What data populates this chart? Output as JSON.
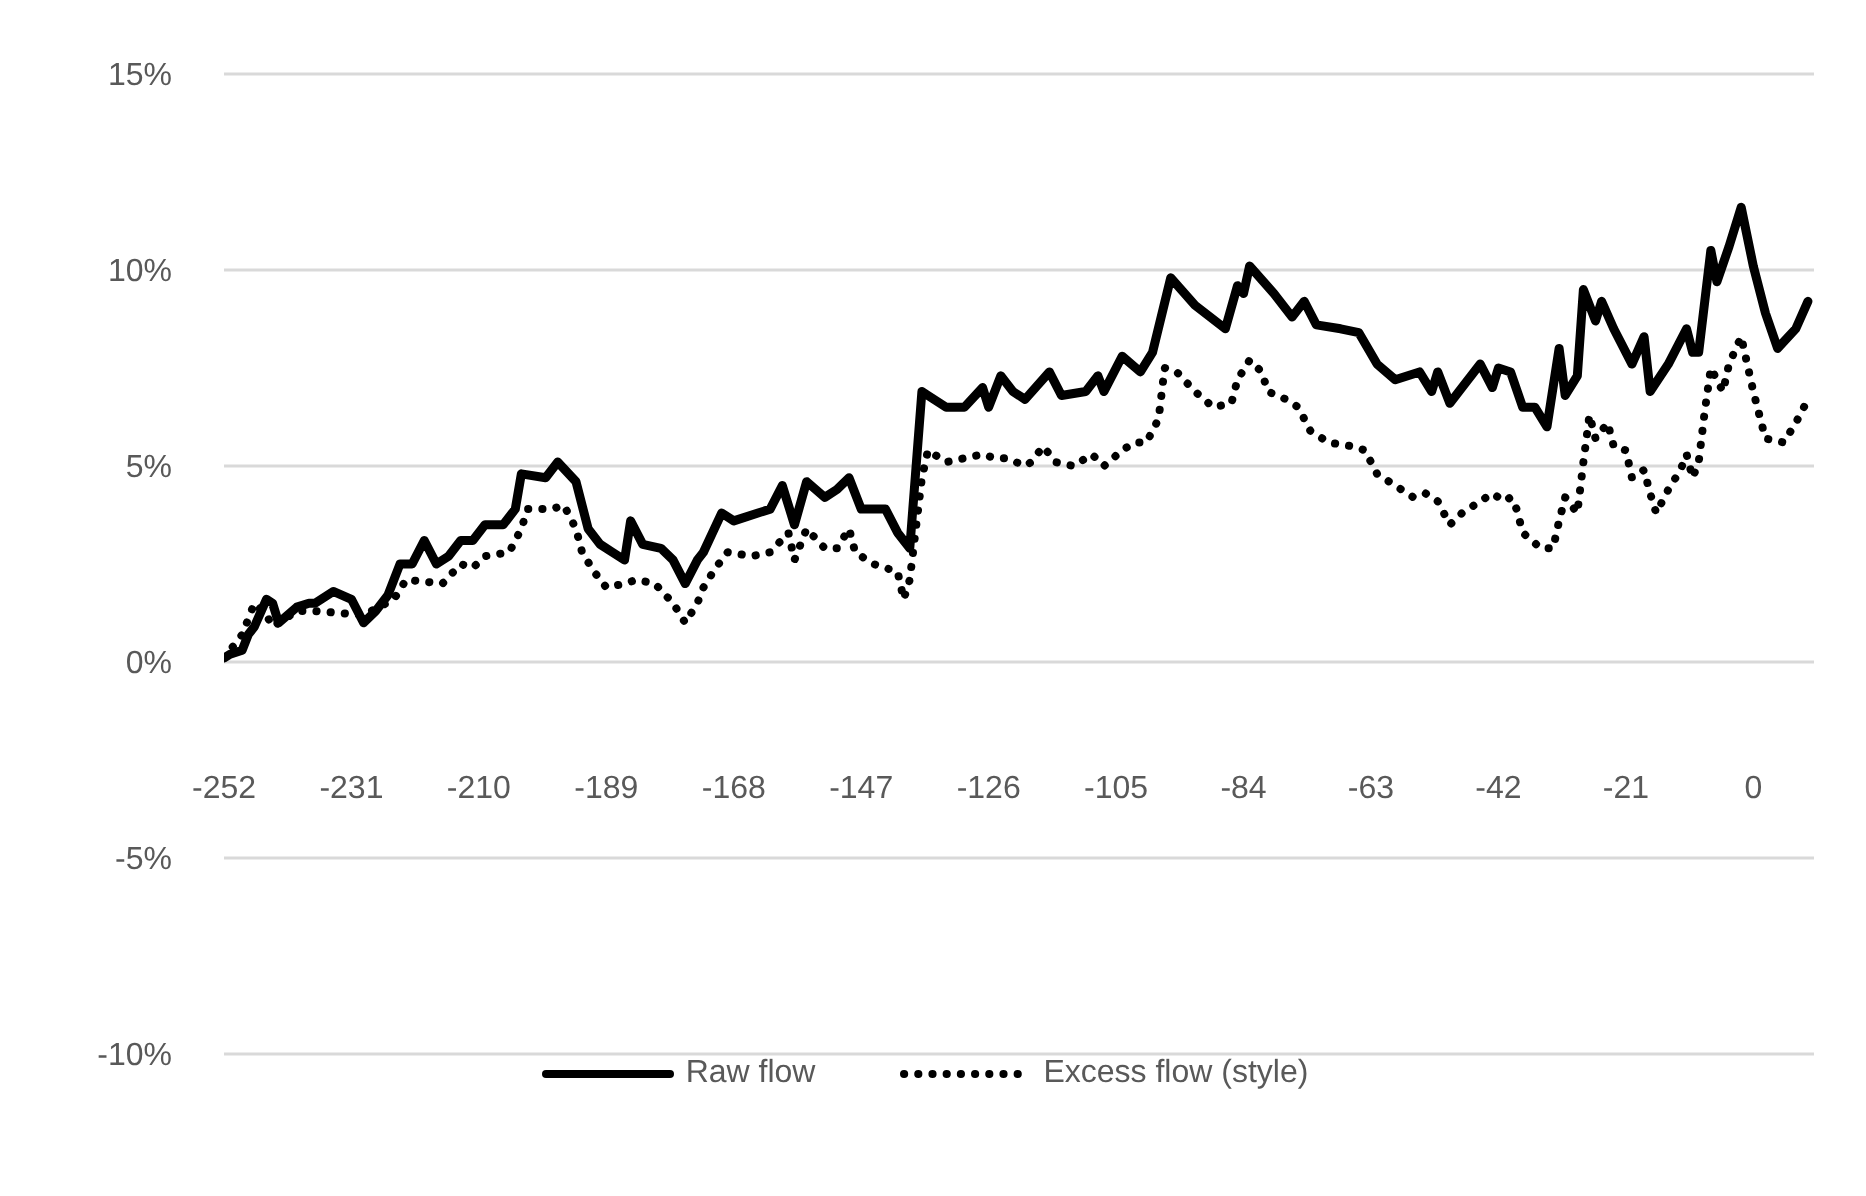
{
  "chart_data": {
    "type": "line",
    "xlim": [
      -252,
      10
    ],
    "xticks": [
      -252,
      -231,
      -210,
      -189,
      -168,
      -147,
      -126,
      -105,
      -84,
      -63,
      -42,
      -21,
      0
    ],
    "ylim": [
      -10,
      15
    ],
    "yticks": [
      {
        "value": -10,
        "label": "-10%"
      },
      {
        "value": -5,
        "label": "-5%"
      },
      {
        "value": 0,
        "label": "0%"
      },
      {
        "value": 5,
        "label": "5%"
      },
      {
        "value": 10,
        "label": "10%"
      },
      {
        "value": 15,
        "label": "15%"
      }
    ],
    "grid": "y",
    "legend": "bottom",
    "marker": "none",
    "series": [
      {
        "name": "Raw flow",
        "color": "#000000",
        "line_style": "solid",
        "x": [
          -252,
          -251,
          -249,
          -248,
          -247,
          -245,
          -244,
          -243,
          -240,
          -238,
          -237,
          -234,
          -231,
          -229,
          -227,
          -225,
          -223,
          -221,
          -219,
          -217,
          -215,
          -213,
          -211,
          -209,
          -206,
          -204,
          -203,
          -199,
          -197,
          -194,
          -192,
          -190,
          -188,
          -186,
          -185,
          -183,
          -180,
          -178,
          -176,
          -174,
          -173,
          -170,
          -168,
          -164,
          -162,
          -160,
          -158,
          -156,
          -153,
          -151,
          -149,
          -147,
          -143,
          -141,
          -139,
          -137,
          -136,
          -133,
          -130,
          -127,
          -126,
          -124,
          -122,
          -120,
          -116,
          -114,
          -110,
          -108,
          -107,
          -104,
          -101,
          -99,
          -96,
          -92,
          -87,
          -85,
          -84,
          -83,
          -79,
          -76,
          -74,
          -72,
          -68,
          -65,
          -62,
          -59,
          -55,
          -53,
          -52,
          -50,
          -48,
          -45,
          -43,
          -42,
          -40,
          -38,
          -36,
          -34,
          -32,
          -31,
          -29,
          -28,
          -26,
          -25,
          -23,
          -20,
          -18,
          -17,
          -14,
          -11,
          -10,
          -9,
          -7,
          -6,
          -4,
          -2,
          0,
          2,
          4,
          7,
          9
        ],
        "values": [
          0.1,
          0.2,
          0.3,
          0.7,
          0.9,
          1.6,
          1.5,
          1.0,
          1.4,
          1.5,
          1.5,
          1.8,
          1.6,
          1.0,
          1.3,
          1.7,
          2.5,
          2.5,
          3.1,
          2.5,
          2.7,
          3.1,
          3.1,
          3.5,
          3.5,
          3.9,
          4.8,
          4.7,
          5.1,
          4.6,
          3.4,
          3.0,
          2.8,
          2.6,
          3.6,
          3.0,
          2.9,
          2.6,
          2.0,
          2.6,
          2.8,
          3.8,
          3.6,
          3.8,
          3.9,
          4.5,
          3.5,
          4.6,
          4.2,
          4.4,
          4.7,
          3.9,
          3.9,
          3.3,
          2.9,
          6.9,
          6.8,
          6.5,
          6.5,
          7.0,
          6.5,
          7.3,
          6.9,
          6.7,
          7.4,
          6.8,
          6.9,
          7.3,
          6.9,
          7.8,
          7.4,
          7.9,
          9.8,
          9.1,
          8.5,
          9.6,
          9.4,
          10.1,
          9.4,
          8.8,
          9.2,
          8.6,
          8.5,
          8.4,
          7.6,
          7.2,
          7.4,
          6.9,
          7.4,
          6.6,
          7.0,
          7.6,
          7.0,
          7.5,
          7.4,
          6.5,
          6.5,
          6.0,
          8.0,
          6.8,
          7.3,
          9.5,
          8.7,
          9.2,
          8.5,
          7.6,
          8.3,
          6.9,
          7.6,
          8.5,
          7.9,
          7.9,
          10.5,
          9.7,
          10.6,
          11.6,
          10.1,
          8.9,
          8.0,
          8.5,
          9.2
        ]
      },
      {
        "name": "Excess flow (style)",
        "color": "#000000",
        "line_style": "dotted",
        "x": [
          -252,
          -249,
          -247,
          -245,
          -244,
          -240,
          -237,
          -229,
          -224,
          -222,
          -216,
          -213,
          -211,
          -209,
          -205,
          -203,
          -202,
          -198,
          -196,
          -194,
          -193,
          -191,
          -189,
          -186,
          -184,
          -181,
          -178,
          -176,
          -174,
          -173,
          -171,
          -169,
          -165,
          -162,
          -159,
          -158,
          -156,
          -153,
          -151,
          -149,
          -148,
          -145,
          -141,
          -140,
          -139,
          -138,
          -137,
          -136,
          -133,
          -130,
          -127,
          -125,
          -123,
          -120,
          -119,
          -117,
          -115,
          -112,
          -109,
          -107,
          -104,
          -102,
          -100,
          -98,
          -97,
          -95,
          -92,
          -89,
          -86,
          -85,
          -83,
          -81,
          -80,
          -77,
          -75,
          -73,
          -70,
          -66,
          -64,
          -62,
          -59,
          -56,
          -54,
          -52,
          -50,
          -48,
          -45,
          -43,
          -41,
          -40,
          -39,
          -38,
          -35,
          -33,
          -32,
          -31,
          -30,
          -29,
          -28,
          -27,
          -26,
          -24,
          -23,
          -21,
          -20,
          -18,
          -17,
          -16,
          -14,
          -12,
          -11,
          -10,
          -9,
          -8,
          -7,
          -5,
          -4,
          -2,
          -1,
          0,
          1,
          2,
          5,
          7,
          9
        ],
        "values": [
          0.1,
          0.7,
          1.5,
          1.2,
          0.9,
          1.3,
          1.3,
          1.2,
          1.6,
          2.1,
          2.0,
          2.5,
          2.4,
          2.7,
          2.8,
          3.4,
          3.9,
          3.9,
          4.0,
          3.4,
          2.8,
          2.3,
          1.9,
          2.0,
          2.1,
          2.0,
          1.5,
          1.0,
          1.5,
          1.9,
          2.4,
          2.8,
          2.7,
          2.8,
          3.3,
          2.6,
          3.4,
          2.9,
          2.9,
          3.4,
          2.8,
          2.5,
          2.3,
          1.6,
          2.1,
          3.4,
          4.7,
          5.4,
          5.1,
          5.2,
          5.3,
          5.2,
          5.2,
          5.0,
          5.1,
          5.5,
          5.1,
          5.0,
          5.3,
          5.0,
          5.4,
          5.6,
          5.6,
          6.2,
          7.5,
          7.4,
          6.9,
          6.5,
          6.6,
          7.2,
          7.7,
          7.4,
          6.9,
          6.7,
          6.5,
          5.9,
          5.6,
          5.5,
          5.4,
          4.8,
          4.5,
          4.2,
          4.3,
          4.1,
          3.5,
          3.8,
          4.1,
          4.3,
          4.1,
          4.2,
          3.9,
          3.3,
          2.9,
          2.9,
          3.6,
          4.2,
          4.0,
          3.8,
          5.1,
          6.3,
          5.7,
          6.1,
          5.5,
          5.4,
          4.7,
          4.9,
          4.3,
          3.8,
          4.4,
          4.9,
          5.3,
          4.7,
          5.1,
          6.4,
          7.5,
          6.9,
          7.6,
          8.3,
          7.6,
          6.9,
          6.3,
          5.7,
          5.6,
          6.1,
          6.7
        ]
      }
    ]
  }
}
